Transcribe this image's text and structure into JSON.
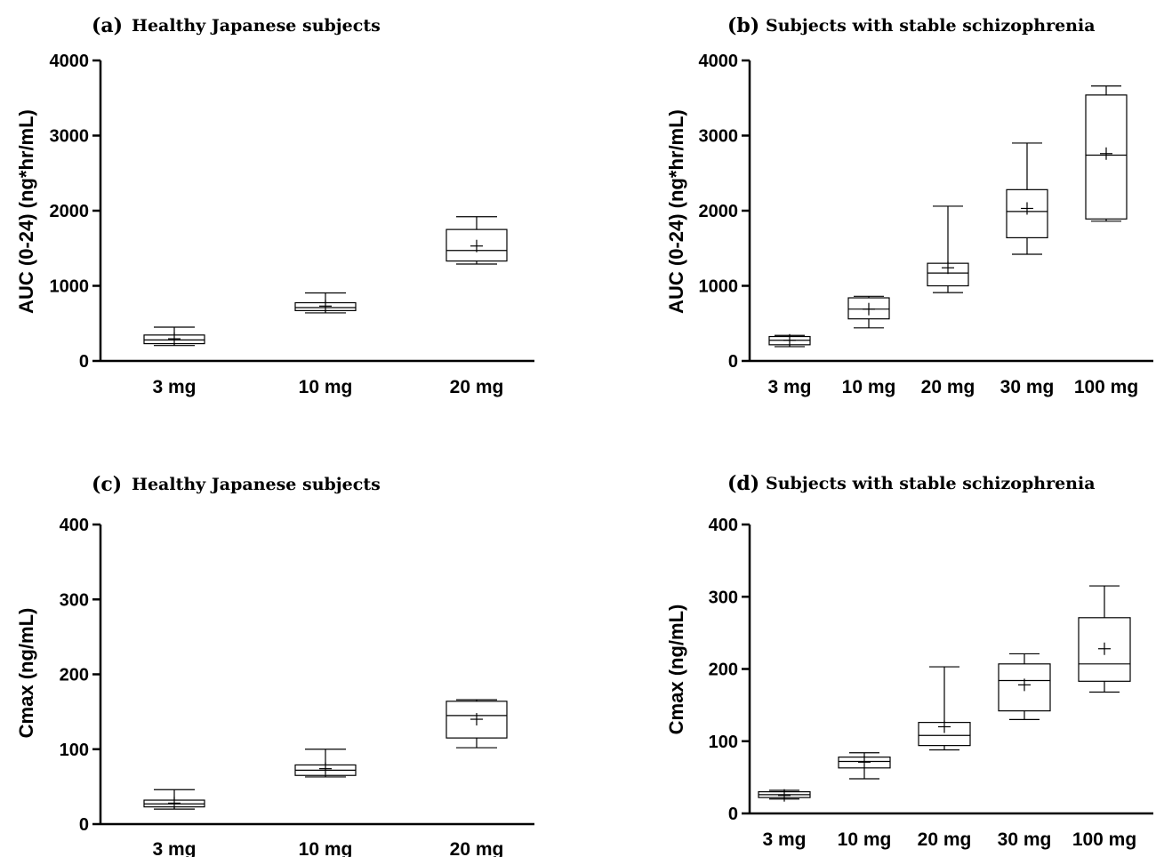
{
  "chart_data": [
    {
      "type": "box",
      "panel_label": "(a)",
      "title": "Healthy Japanese subjects",
      "ylabel": "AUC (0-24) (ng*hr/mL)",
      "ylim": [
        0,
        4000
      ],
      "yticks": [
        "0",
        "1000",
        "2000",
        "3000",
        "4000"
      ],
      "categories": [
        "3 mg",
        "10 mg",
        "20 mg"
      ],
      "boxes": [
        {
          "min": 205,
          "q1": 230,
          "median": 280,
          "q3": 345,
          "max": 450,
          "mean": 295
        },
        {
          "min": 640,
          "q1": 670,
          "median": 710,
          "q3": 775,
          "max": 905,
          "mean": 730
        },
        {
          "min": 1290,
          "q1": 1330,
          "median": 1470,
          "q3": 1750,
          "max": 1920,
          "mean": 1530
        }
      ]
    },
    {
      "type": "box",
      "panel_label": "(b)",
      "title": "Subjects with stable schizophrenia",
      "ylabel": "AUC (0-24) (ng*hr/mL)",
      "ylim": [
        0,
        4000
      ],
      "yticks": [
        "0",
        "1000",
        "2000",
        "3000",
        "4000"
      ],
      "categories": [
        "3 mg",
        "10 mg",
        "20 mg",
        "30 mg",
        "100 mg"
      ],
      "boxes": [
        {
          "min": 190,
          "q1": 215,
          "median": 275,
          "q3": 325,
          "max": 340,
          "mean": 275
        },
        {
          "min": 440,
          "q1": 560,
          "median": 690,
          "q3": 840,
          "max": 860,
          "mean": 690
        },
        {
          "min": 910,
          "q1": 1000,
          "median": 1170,
          "q3": 1300,
          "max": 2060,
          "mean": 1240
        },
        {
          "min": 1420,
          "q1": 1640,
          "median": 1990,
          "q3": 2280,
          "max": 2900,
          "mean": 2030
        },
        {
          "min": 1860,
          "q1": 1890,
          "median": 2740,
          "q3": 3540,
          "max": 3660,
          "mean": 2760
        }
      ]
    },
    {
      "type": "box",
      "panel_label": "(c)",
      "title": "Healthy Japanese subjects",
      "ylabel": "Cmax (ng/mL)",
      "ylim": [
        0,
        400
      ],
      "yticks": [
        "0",
        "100",
        "200",
        "300",
        "400"
      ],
      "categories": [
        "3 mg",
        "10 mg",
        "20 mg"
      ],
      "boxes": [
        {
          "min": 20,
          "q1": 23,
          "median": 27,
          "q3": 32,
          "max": 46,
          "mean": 28
        },
        {
          "min": 63,
          "q1": 65,
          "median": 72,
          "q3": 79,
          "max": 100,
          "mean": 74
        },
        {
          "min": 102,
          "q1": 115,
          "median": 145,
          "q3": 164,
          "max": 166,
          "mean": 140
        }
      ]
    },
    {
      "type": "box",
      "panel_label": "(d)",
      "title": "Subjects with stable schizophrenia",
      "ylabel": "Cmax (ng/mL)",
      "ylim": [
        0,
        400
      ],
      "yticks": [
        "0",
        "100",
        "200",
        "300",
        "400"
      ],
      "categories": [
        "3 mg",
        "10 mg",
        "20 mg",
        "30 mg",
        "100 mg"
      ],
      "boxes": [
        {
          "min": 20,
          "q1": 22,
          "median": 26,
          "q3": 30,
          "max": 32,
          "mean": 25
        },
        {
          "min": 48,
          "q1": 63,
          "median": 72,
          "q3": 78,
          "max": 84,
          "mean": 71
        },
        {
          "min": 88,
          "q1": 94,
          "median": 108,
          "q3": 126,
          "max": 203,
          "mean": 120
        },
        {
          "min": 130,
          "q1": 142,
          "median": 184,
          "q3": 207,
          "max": 221,
          "mean": 178
        },
        {
          "min": 168,
          "q1": 183,
          "median": 207,
          "q3": 271,
          "max": 315,
          "mean": 228
        }
      ]
    }
  ]
}
